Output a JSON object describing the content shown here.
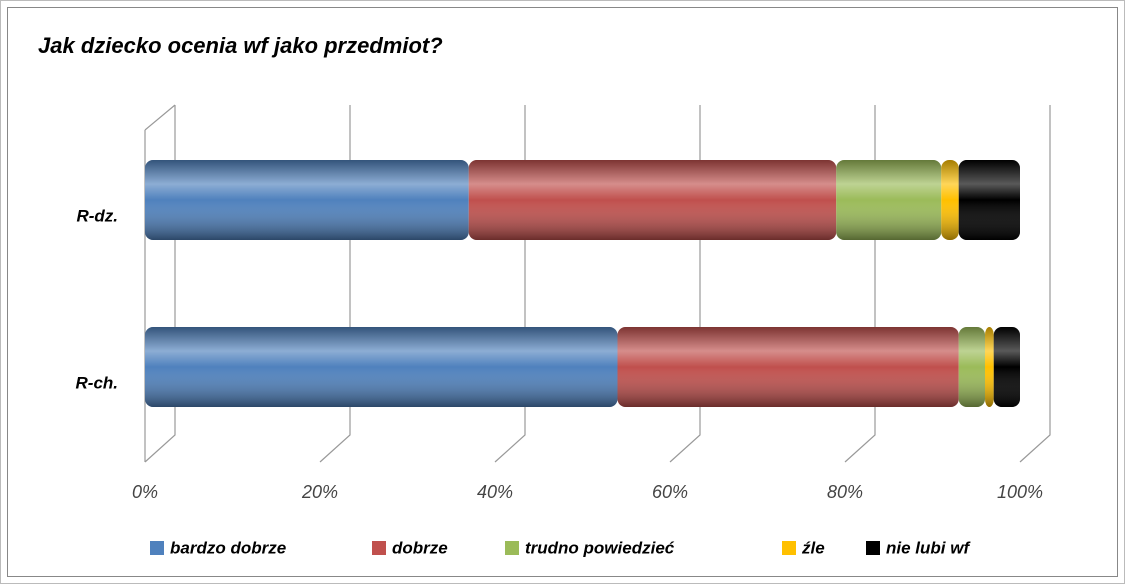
{
  "chart_data": {
    "type": "stacked-bar-horizontal",
    "title": "Jak dziecko ocenia wf jako przedmiot?",
    "categories": [
      "R-ch.",
      "R-dz."
    ],
    "series": [
      {
        "name": "bardzo dobrze",
        "color": "#4f81bd",
        "values": [
          54,
          37
        ]
      },
      {
        "name": "dobrze",
        "color": "#c0504d",
        "values": [
          39,
          42
        ]
      },
      {
        "name": "trudno powiedzieć",
        "color": "#9bbb59",
        "values": [
          3,
          12
        ]
      },
      {
        "name": "źle",
        "color": "#ffc000",
        "values": [
          1,
          2
        ]
      },
      {
        "name": "nie lubi wf",
        "color": "#000000",
        "values": [
          3,
          7
        ]
      }
    ],
    "xlim": [
      0,
      100
    ],
    "xticks": [
      {
        "value": 0,
        "label": "0%"
      },
      {
        "value": 20,
        "label": "20%"
      },
      {
        "value": 40,
        "label": "40%"
      },
      {
        "value": 60,
        "label": "60%"
      },
      {
        "value": 80,
        "label": "80%"
      },
      {
        "value": 100,
        "label": "100%"
      }
    ],
    "grid": true,
    "legend": "bottom"
  }
}
